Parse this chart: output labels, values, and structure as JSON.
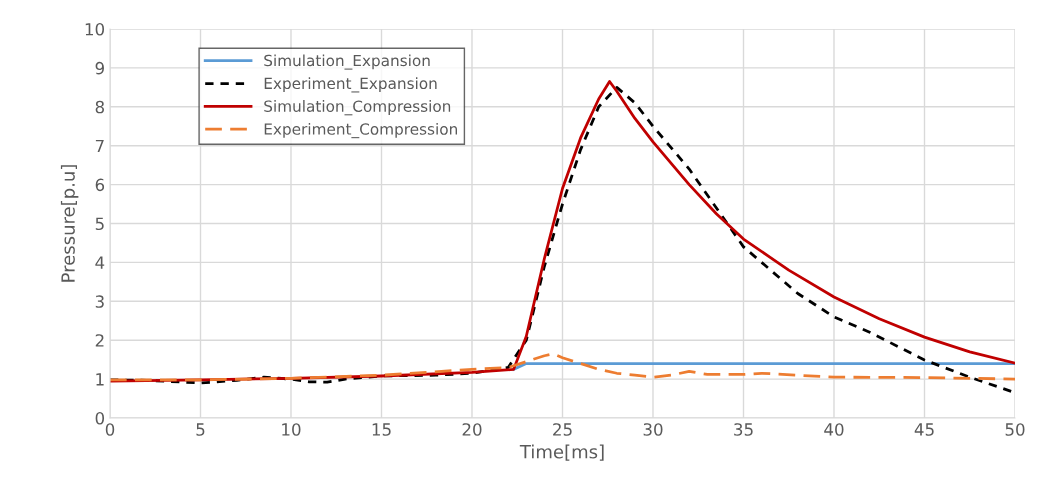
{
  "chart_data": {
    "type": "line",
    "xlabel": "Time[ms]",
    "ylabel": "Pressure[p.u]",
    "xlim": [
      0,
      50
    ],
    "ylim": [
      0,
      10
    ],
    "xticks": [
      0,
      5,
      10,
      15,
      20,
      25,
      30,
      35,
      40,
      45,
      50
    ],
    "yticks": [
      0,
      1,
      2,
      3,
      4,
      5,
      6,
      7,
      8,
      9,
      10
    ],
    "grid": true,
    "legend": "top left",
    "series": [
      {
        "name": "Simulation_Expansion",
        "color": "#5b9bd5",
        "line_style": "solid",
        "x": [
          22.3,
          23,
          50
        ],
        "values": [
          1.25,
          1.4,
          1.4
        ]
      },
      {
        "name": "Experiment_Expansion",
        "color": "#000000",
        "line_style": "dotted",
        "x": [
          0,
          2,
          5,
          7,
          8.5,
          10,
          11,
          12,
          13,
          15,
          18,
          20,
          22,
          23,
          24,
          25,
          26,
          27,
          28,
          29,
          30,
          32,
          35,
          38,
          40,
          42,
          45,
          47.5,
          50
        ],
        "values": [
          0.98,
          0.97,
          0.9,
          0.97,
          1.05,
          1.0,
          0.93,
          0.92,
          1.0,
          1.08,
          1.1,
          1.15,
          1.3,
          2.0,
          3.9,
          5.5,
          6.9,
          8.0,
          8.5,
          8.1,
          7.5,
          6.4,
          4.4,
          3.2,
          2.6,
          2.2,
          1.49,
          1.05,
          0.65
        ]
      },
      {
        "name": "Simulation_Compression",
        "color": "#c00000",
        "line_style": "solid",
        "x": [
          0,
          5,
          10,
          15,
          20,
          22.3,
          23,
          24,
          25,
          26,
          27,
          27.6,
          28,
          29,
          30,
          32,
          33.5,
          35,
          37.5,
          40,
          42.5,
          45,
          47.5,
          50
        ],
        "values": [
          0.95,
          0.98,
          1.02,
          1.08,
          1.17,
          1.25,
          2.1,
          4.1,
          5.9,
          7.2,
          8.2,
          8.65,
          8.4,
          7.7,
          7.1,
          6.0,
          5.25,
          4.6,
          3.8,
          3.11,
          2.55,
          2.08,
          1.7,
          1.41
        ]
      },
      {
        "name": "Experiment_Compression",
        "color": "#ed7d31",
        "line_style": "dashed",
        "x": [
          0,
          5,
          10,
          15,
          20,
          22,
          23,
          24,
          24.5,
          25,
          26,
          27,
          28,
          29,
          30,
          31,
          32,
          33,
          35,
          36,
          38,
          40,
          45,
          50
        ],
        "values": [
          0.98,
          0.98,
          1.02,
          1.1,
          1.25,
          1.3,
          1.45,
          1.6,
          1.65,
          1.55,
          1.4,
          1.25,
          1.15,
          1.1,
          1.05,
          1.1,
          1.2,
          1.12,
          1.12,
          1.15,
          1.1,
          1.05,
          1.04,
          1.0
        ]
      }
    ]
  }
}
